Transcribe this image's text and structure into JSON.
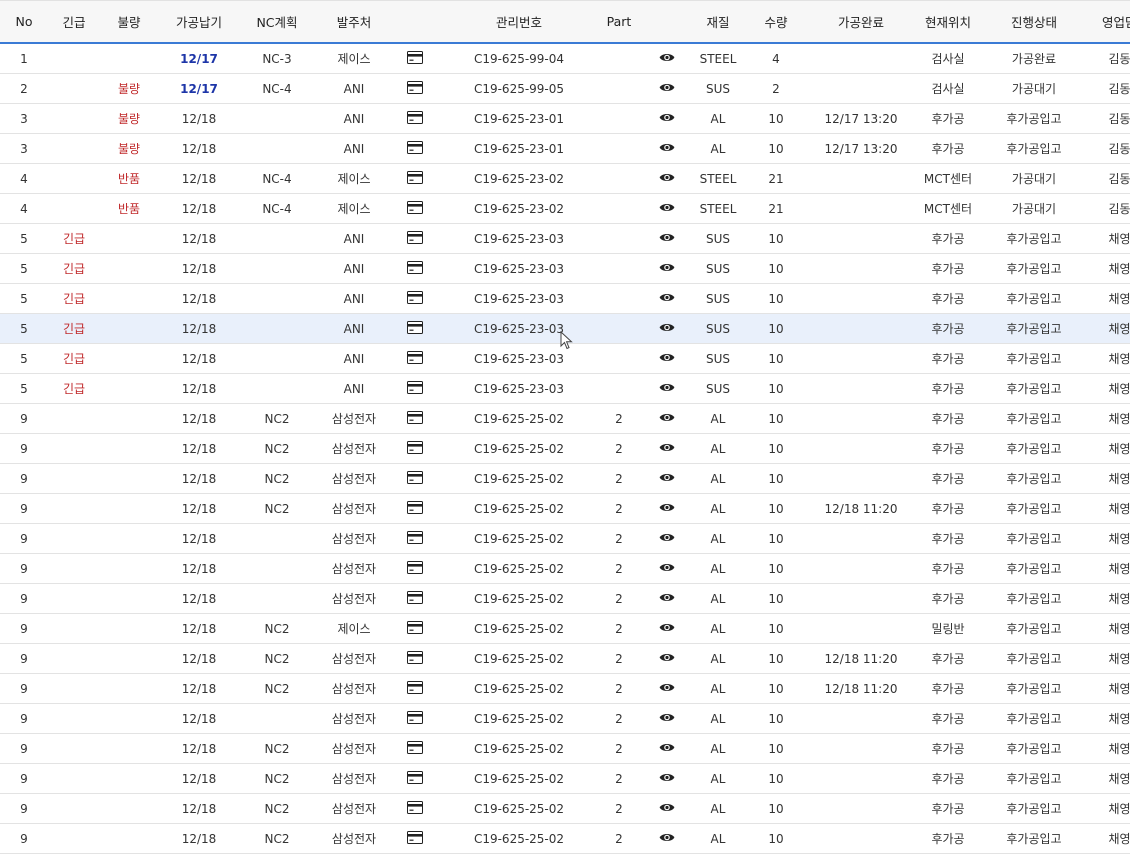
{
  "columns": [
    "No",
    "긴급",
    "불량",
    "가공납기",
    "NC계획",
    "발주처",
    "",
    "관리번호",
    "Part",
    "",
    "재질",
    "수량",
    "가공완료",
    "현재위치",
    "진행상태",
    "영업담당"
  ],
  "rows": [
    {
      "no": "1",
      "urgent": "",
      "defect": "",
      "due": "12/17",
      "due_bold": true,
      "nc": "NC-3",
      "client": "제이스",
      "mgmt": "C19-625-99-04",
      "part": "",
      "mat": "STEEL",
      "qty": "4",
      "done": "",
      "loc": "검사실",
      "status": "가공완료",
      "sales": "김동근"
    },
    {
      "no": "2",
      "urgent": "",
      "defect": "불량",
      "due": "12/17",
      "due_bold": true,
      "nc": "NC-4",
      "client": "ANI",
      "mgmt": "C19-625-99-05",
      "part": "",
      "mat": "SUS",
      "qty": "2",
      "done": "",
      "loc": "검사실",
      "status": "가공대기",
      "sales": "김동근"
    },
    {
      "no": "3",
      "urgent": "",
      "defect": "불량",
      "due": "12/18",
      "nc": "",
      "client": "ANI",
      "mgmt": "C19-625-23-01",
      "part": "",
      "mat": "AL",
      "qty": "10",
      "done": "12/17 13:20",
      "loc": "후가공",
      "status": "후가공입고",
      "sales": "김동근"
    },
    {
      "no": "3",
      "urgent": "",
      "defect": "불량",
      "due": "12/18",
      "nc": "",
      "client": "ANI",
      "mgmt": "C19-625-23-01",
      "part": "",
      "mat": "AL",
      "qty": "10",
      "done": "12/17 13:20",
      "loc": "후가공",
      "status": "후가공입고",
      "sales": "김동근"
    },
    {
      "no": "4",
      "urgent": "",
      "defect": "반품",
      "due": "12/18",
      "nc": "NC-4",
      "client": "제이스",
      "mgmt": "C19-625-23-02",
      "part": "",
      "mat": "STEEL",
      "qty": "21",
      "done": "",
      "loc": "MCT센터",
      "status": "가공대기",
      "sales": "김동근"
    },
    {
      "no": "4",
      "urgent": "",
      "defect": "반품",
      "due": "12/18",
      "nc": "NC-4",
      "client": "제이스",
      "mgmt": "C19-625-23-02",
      "part": "",
      "mat": "STEEL",
      "qty": "21",
      "done": "",
      "loc": "MCT센터",
      "status": "가공대기",
      "sales": "김동근"
    },
    {
      "no": "5",
      "urgent": "긴급",
      "defect": "",
      "due": "12/18",
      "nc": "",
      "client": "ANI",
      "mgmt": "C19-625-23-03",
      "part": "",
      "mat": "SUS",
      "qty": "10",
      "done": "",
      "loc": "후가공",
      "status": "후가공입고",
      "sales": "채영신"
    },
    {
      "no": "5",
      "urgent": "긴급",
      "defect": "",
      "due": "12/18",
      "nc": "",
      "client": "ANI",
      "mgmt": "C19-625-23-03",
      "part": "",
      "mat": "SUS",
      "qty": "10",
      "done": "",
      "loc": "후가공",
      "status": "후가공입고",
      "sales": "채영신"
    },
    {
      "no": "5",
      "urgent": "긴급",
      "defect": "",
      "due": "12/18",
      "nc": "",
      "client": "ANI",
      "mgmt": "C19-625-23-03",
      "part": "",
      "mat": "SUS",
      "qty": "10",
      "done": "",
      "loc": "후가공",
      "status": "후가공입고",
      "sales": "채영신"
    },
    {
      "no": "5",
      "urgent": "긴급",
      "defect": "",
      "due": "12/18",
      "nc": "",
      "client": "ANI",
      "mgmt": "C19-625-23-03",
      "part": "",
      "mat": "SUS",
      "qty": "10",
      "done": "",
      "loc": "후가공",
      "status": "후가공입고",
      "sales": "채영신",
      "selected": true
    },
    {
      "no": "5",
      "urgent": "긴급",
      "defect": "",
      "due": "12/18",
      "nc": "",
      "client": "ANI",
      "mgmt": "C19-625-23-03",
      "part": "",
      "mat": "SUS",
      "qty": "10",
      "done": "",
      "loc": "후가공",
      "status": "후가공입고",
      "sales": "채영신"
    },
    {
      "no": "5",
      "urgent": "긴급",
      "defect": "",
      "due": "12/18",
      "nc": "",
      "client": "ANI",
      "mgmt": "C19-625-23-03",
      "part": "",
      "mat": "SUS",
      "qty": "10",
      "done": "",
      "loc": "후가공",
      "status": "후가공입고",
      "sales": "채영신"
    },
    {
      "no": "9",
      "urgent": "",
      "defect": "",
      "due": "12/18",
      "nc": "NC2",
      "client": "삼성전자",
      "mgmt": "C19-625-25-02",
      "part": "2",
      "mat": "AL",
      "qty": "10",
      "done": "",
      "loc": "후가공",
      "status": "후가공입고",
      "sales": "채영신"
    },
    {
      "no": "9",
      "urgent": "",
      "defect": "",
      "due": "12/18",
      "nc": "NC2",
      "client": "삼성전자",
      "mgmt": "C19-625-25-02",
      "part": "2",
      "mat": "AL",
      "qty": "10",
      "done": "",
      "loc": "후가공",
      "status": "후가공입고",
      "sales": "채영신"
    },
    {
      "no": "9",
      "urgent": "",
      "defect": "",
      "due": "12/18",
      "nc": "NC2",
      "client": "삼성전자",
      "mgmt": "C19-625-25-02",
      "part": "2",
      "mat": "AL",
      "qty": "10",
      "done": "",
      "loc": "후가공",
      "status": "후가공입고",
      "sales": "채영신"
    },
    {
      "no": "9",
      "urgent": "",
      "defect": "",
      "due": "12/18",
      "nc": "NC2",
      "client": "삼성전자",
      "mgmt": "C19-625-25-02",
      "part": "2",
      "mat": "AL",
      "qty": "10",
      "done": "12/18 11:20",
      "loc": "후가공",
      "status": "후가공입고",
      "sales": "채영신"
    },
    {
      "no": "9",
      "urgent": "",
      "defect": "",
      "due": "12/18",
      "nc": "",
      "client": "삼성전자",
      "mgmt": "C19-625-25-02",
      "part": "2",
      "mat": "AL",
      "qty": "10",
      "done": "",
      "loc": "후가공",
      "status": "후가공입고",
      "sales": "채영신"
    },
    {
      "no": "9",
      "urgent": "",
      "defect": "",
      "due": "12/18",
      "nc": "",
      "client": "삼성전자",
      "mgmt": "C19-625-25-02",
      "part": "2",
      "mat": "AL",
      "qty": "10",
      "done": "",
      "loc": "후가공",
      "status": "후가공입고",
      "sales": "채영신"
    },
    {
      "no": "9",
      "urgent": "",
      "defect": "",
      "due": "12/18",
      "nc": "",
      "client": "삼성전자",
      "mgmt": "C19-625-25-02",
      "part": "2",
      "mat": "AL",
      "qty": "10",
      "done": "",
      "loc": "후가공",
      "status": "후가공입고",
      "sales": "채영신"
    },
    {
      "no": "9",
      "urgent": "",
      "defect": "",
      "due": "12/18",
      "nc": "NC2",
      "client": "제이스",
      "mgmt": "C19-625-25-02",
      "part": "2",
      "mat": "AL",
      "qty": "10",
      "done": "",
      "loc": "밀링반",
      "status": "후가공입고",
      "sales": "채영신"
    },
    {
      "no": "9",
      "urgent": "",
      "defect": "",
      "due": "12/18",
      "nc": "NC2",
      "client": "삼성전자",
      "mgmt": "C19-625-25-02",
      "part": "2",
      "mat": "AL",
      "qty": "10",
      "done": "12/18 11:20",
      "loc": "후가공",
      "status": "후가공입고",
      "sales": "채영신"
    },
    {
      "no": "9",
      "urgent": "",
      "defect": "",
      "due": "12/18",
      "nc": "NC2",
      "client": "삼성전자",
      "mgmt": "C19-625-25-02",
      "part": "2",
      "mat": "AL",
      "qty": "10",
      "done": "12/18 11:20",
      "loc": "후가공",
      "status": "후가공입고",
      "sales": "채영신"
    },
    {
      "no": "9",
      "urgent": "",
      "defect": "",
      "due": "12/18",
      "nc": "",
      "client": "삼성전자",
      "mgmt": "C19-625-25-02",
      "part": "2",
      "mat": "AL",
      "qty": "10",
      "done": "",
      "loc": "후가공",
      "status": "후가공입고",
      "sales": "채영신"
    },
    {
      "no": "9",
      "urgent": "",
      "defect": "",
      "due": "12/18",
      "nc": "NC2",
      "client": "삼성전자",
      "mgmt": "C19-625-25-02",
      "part": "2",
      "mat": "AL",
      "qty": "10",
      "done": "",
      "loc": "후가공",
      "status": "후가공입고",
      "sales": "채영신"
    },
    {
      "no": "9",
      "urgent": "",
      "defect": "",
      "due": "12/18",
      "nc": "NC2",
      "client": "삼성전자",
      "mgmt": "C19-625-25-02",
      "part": "2",
      "mat": "AL",
      "qty": "10",
      "done": "",
      "loc": "후가공",
      "status": "후가공입고",
      "sales": "채영신"
    },
    {
      "no": "9",
      "urgent": "",
      "defect": "",
      "due": "12/18",
      "nc": "NC2",
      "client": "삼성전자",
      "mgmt": "C19-625-25-02",
      "part": "2",
      "mat": "AL",
      "qty": "10",
      "done": "",
      "loc": "후가공",
      "status": "후가공입고",
      "sales": "채영신"
    },
    {
      "no": "9",
      "urgent": "",
      "defect": "",
      "due": "12/18",
      "nc": "NC2",
      "client": "삼성전자",
      "mgmt": "C19-625-25-02",
      "part": "2",
      "mat": "AL",
      "qty": "10",
      "done": "",
      "loc": "후가공",
      "status": "후가공입고",
      "sales": "채영신"
    }
  ],
  "icons": {
    "card": "card-icon",
    "view": "eye-icon"
  },
  "colors": {
    "urgent": "#c0292b",
    "defect": "#c0292b",
    "due_bold": "#1d35a8",
    "selected_row": "#e9f0fb",
    "header_border": "#3a7bd5"
  }
}
